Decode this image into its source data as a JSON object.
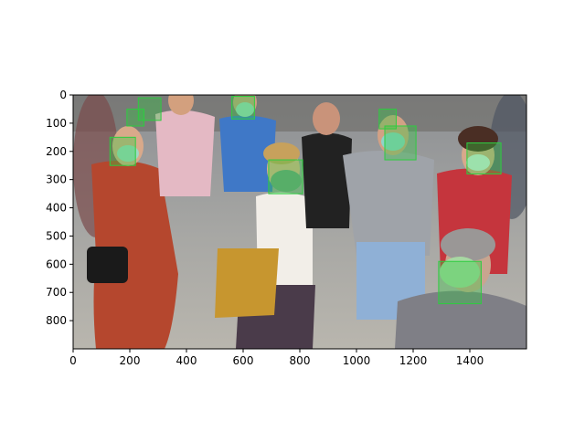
{
  "figure": {
    "image_description_tag": "crowd-street-photo-with-face-detections",
    "x_ticks": [
      0,
      200,
      400,
      600,
      800,
      1000,
      1200,
      1400
    ],
    "y_ticks": [
      0,
      100,
      200,
      300,
      400,
      500,
      600,
      700,
      800
    ],
    "x_range": [
      0,
      1600
    ],
    "y_range": [
      900,
      0
    ],
    "detection_color": "#2ecc40",
    "detections": [
      {
        "label": "",
        "x": 130,
        "y": 150,
        "w": 90,
        "h": 100
      },
      {
        "label": "",
        "x": 230,
        "y": 10,
        "w": 80,
        "h": 80
      },
      {
        "label": "",
        "x": 190,
        "y": 50,
        "w": 60,
        "h": 60
      },
      {
        "label": "",
        "x": 560,
        "y": 5,
        "w": 80,
        "h": 80
      },
      {
        "label": "",
        "x": 690,
        "y": 230,
        "w": 120,
        "h": 120
      },
      {
        "label": "",
        "x": 1080,
        "y": 50,
        "w": 60,
        "h": 70
      },
      {
        "label": "",
        "x": 1100,
        "y": 110,
        "w": 110,
        "h": 120
      },
      {
        "label": "",
        "x": 1390,
        "y": 170,
        "w": 120,
        "h": 110
      },
      {
        "label": "",
        "x": 1290,
        "y": 590,
        "w": 150,
        "h": 150
      }
    ]
  }
}
